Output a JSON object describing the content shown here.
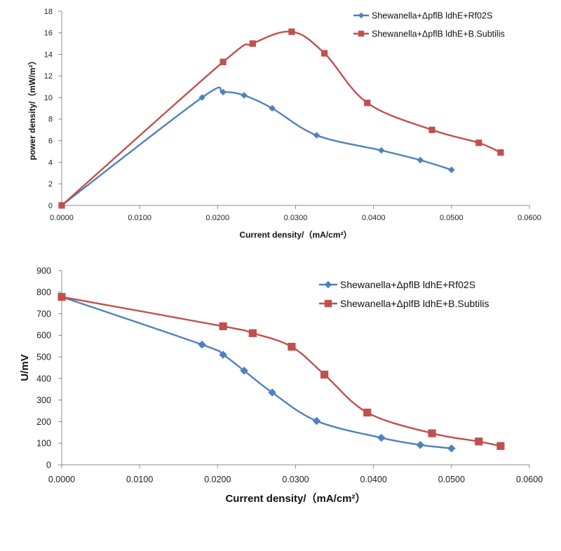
{
  "chart_data": [
    {
      "type": "line",
      "xlabel": "Current density/（mA/cm²）",
      "ylabel": "power density/（mW/m²）",
      "xlim": [
        0,
        0.06
      ],
      "ylim": [
        0,
        18
      ],
      "x_ticks": [
        "0.0000",
        "0.0100",
        "0.0200",
        "0.0300",
        "0.0400",
        "0.0500",
        "0.0600"
      ],
      "y_ticks": [
        "0",
        "2",
        "4",
        "6",
        "8",
        "10",
        "12",
        "14",
        "16",
        "18"
      ],
      "grid": false,
      "smooth": true,
      "legend_position": "top-right",
      "series": [
        {
          "name": "Shewanella+ΔpflB ldhE+Rf02S",
          "color": "#4F81BD",
          "marker": "diamond",
          "x": [
            0.0,
            0.018,
            0.0207,
            0.0234,
            0.027,
            0.0327,
            0.041,
            0.046,
            0.05
          ],
          "y": [
            0.0,
            10.0,
            10.5,
            10.2,
            9.0,
            6.5,
            5.1,
            4.2,
            3.3
          ]
        },
        {
          "name": "Shewanella+ΔpflB ldhE+B.Subtilis",
          "color": "#C0504D",
          "marker": "square",
          "x": [
            0.0,
            0.0207,
            0.0245,
            0.0295,
            0.0337,
            0.0392,
            0.0475,
            0.0535,
            0.0563
          ],
          "y": [
            0.0,
            13.3,
            15.0,
            16.1,
            14.1,
            9.5,
            7.0,
            5.8,
            4.9
          ]
        }
      ]
    },
    {
      "type": "line",
      "xlabel": "Current density/（mA/cm²）",
      "ylabel": "U/mV",
      "xlim": [
        0,
        0.06
      ],
      "ylim": [
        0,
        900
      ],
      "x_ticks": [
        "0.0000",
        "0.0100",
        "0.0200",
        "0.0300",
        "0.0400",
        "0.0500",
        "0.0600"
      ],
      "y_ticks": [
        "0",
        "100",
        "200",
        "300",
        "400",
        "500",
        "600",
        "700",
        "800",
        "900"
      ],
      "grid": false,
      "smooth": true,
      "legend_position": "top-right",
      "series": [
        {
          "name": "Shewanella+ΔpflB ldhE+Rf02S",
          "color": "#4F81BD",
          "marker": "diamond",
          "x": [
            0.0,
            0.018,
            0.0207,
            0.0234,
            0.027,
            0.0327,
            0.041,
            0.046,
            0.05
          ],
          "y": [
            778,
            557,
            510,
            436,
            335,
            203,
            125,
            92,
            76
          ]
        },
        {
          "name": "Shewanella+ΔplfB ldhE+B.Subtilis",
          "color": "#C0504D",
          "marker": "square",
          "x": [
            0.0,
            0.0207,
            0.0245,
            0.0295,
            0.0337,
            0.0392,
            0.0475,
            0.0535,
            0.0563
          ],
          "y": [
            778,
            642,
            610,
            547,
            418,
            242,
            146,
            108,
            87
          ]
        }
      ]
    }
  ]
}
